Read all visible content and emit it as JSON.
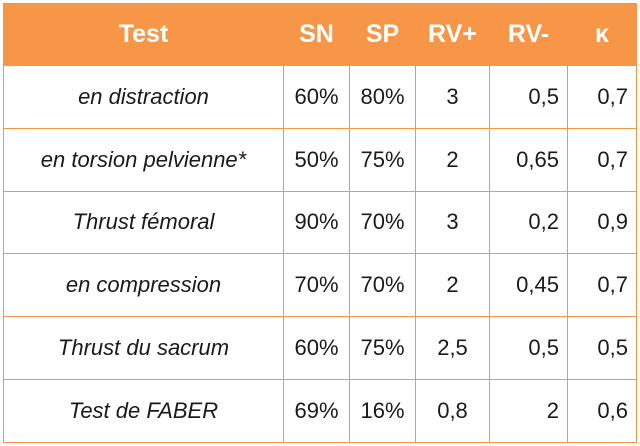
{
  "table": {
    "headers": [
      "Test",
      "SN",
      "SP",
      "RV+",
      "RV-",
      "κ"
    ],
    "rows": [
      {
        "test": "en distraction",
        "sn": "60%",
        "sp": "80%",
        "rv_plus": "3",
        "rv_minus": "0,5",
        "kappa": "0,7"
      },
      {
        "test": "en torsion pelvienne*",
        "sn": "50%",
        "sp": "75%",
        "rv_plus": "2",
        "rv_minus": "0,65",
        "kappa": "0,7"
      },
      {
        "test": "Thrust fémoral",
        "sn": "90%",
        "sp": "70%",
        "rv_plus": "3",
        "rv_minus": "0,2",
        "kappa": "0,9"
      },
      {
        "test": "en compression",
        "sn": "70%",
        "sp": "70%",
        "rv_plus": "2",
        "rv_minus": "0,45",
        "kappa": "0,7"
      },
      {
        "test": "Thrust du sacrum",
        "sn": "60%",
        "sp": "75%",
        "rv_plus": "2,5",
        "rv_minus": "0,5",
        "kappa": "0,5"
      },
      {
        "test": "Test de FABER",
        "sn": "69%",
        "sp": "16%",
        "rv_plus": "0,8",
        "rv_minus": "2",
        "kappa": "0,6"
      }
    ]
  },
  "colors": {
    "header_bg": "#f79646",
    "header_text": "#ffffff",
    "border": "#f79646",
    "cell_text": "#1a1a1a"
  }
}
